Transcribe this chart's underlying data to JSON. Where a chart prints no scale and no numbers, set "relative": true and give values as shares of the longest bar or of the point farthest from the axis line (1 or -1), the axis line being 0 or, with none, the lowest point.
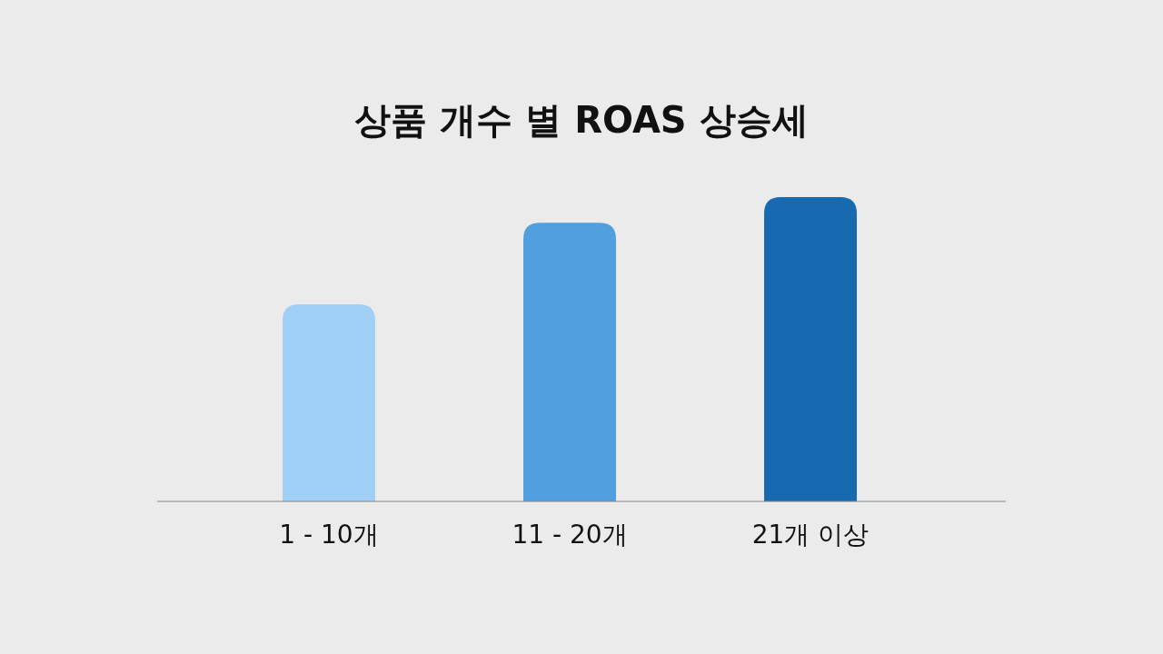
{
  "chart_data": {
    "type": "bar",
    "title": "상품 개수 별 ROAS 상승세",
    "categories": [
      "1 - 10개",
      "11 - 20개",
      "21개 이상"
    ],
    "values": [
      0.648,
      0.916,
      1
    ],
    "colors": [
      "#a1d0f6",
      "#529fdf",
      "#1769b0"
    ],
    "relative": true
  }
}
